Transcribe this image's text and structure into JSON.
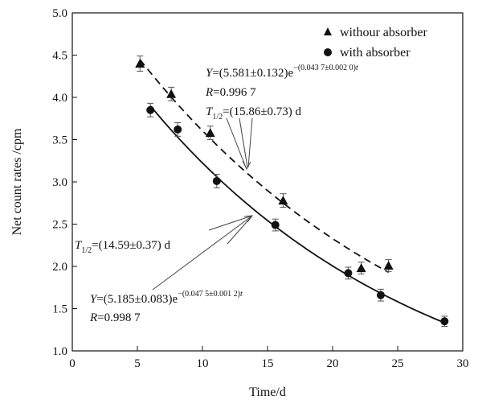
{
  "chart_data": {
    "type": "scatter",
    "xlabel": "Time/d",
    "ylabel": "Net count rates /cpm",
    "xlim": [
      0,
      30
    ],
    "ylim": [
      1.0,
      5.0
    ],
    "xticks": [
      "0",
      "5",
      "10",
      "15",
      "20",
      "25",
      "30"
    ],
    "yticks": [
      "1.0",
      "1.5",
      "2.0",
      "2.5",
      "3.0",
      "3.5",
      "4.0",
      "4.5",
      "5.0"
    ],
    "grid": false,
    "legend_position": "top-right",
    "series": [
      {
        "name": "withour absorber",
        "marker": "triangle",
        "line": "dashed",
        "x": [
          5.2,
          7.6,
          10.6,
          16.2,
          22.2,
          24.3
        ],
        "y": [
          4.4,
          4.04,
          3.58,
          2.78,
          1.98,
          2.01
        ],
        "err": [
          0.09,
          0.08,
          0.08,
          0.08,
          0.07,
          0.07
        ],
        "fit": {
          "A": 5.581,
          "lambda": 0.0437,
          "x_range": [
            5.2,
            24.3
          ]
        }
      },
      {
        "name": "with absorber",
        "marker": "circle",
        "line": "solid",
        "x": [
          6.0,
          8.1,
          11.1,
          15.6,
          21.2,
          23.7,
          28.6
        ],
        "y": [
          3.85,
          3.62,
          3.01,
          2.49,
          1.92,
          1.66,
          1.35
        ],
        "err": [
          0.08,
          0.08,
          0.08,
          0.07,
          0.07,
          0.07,
          0.06
        ],
        "fit": {
          "A": 5.185,
          "lambda": 0.0475,
          "x_range": [
            6.0,
            28.6
          ]
        }
      }
    ],
    "annotations": {
      "eq1": {
        "y_part": "Y",
        "pre": "=(5.581±0.132)e",
        "exp": "−(0.043 7±0.002 0)",
        "exp_t": "t",
        "r_part": "R",
        "r_val": "=0.996 7",
        "t_part": "T",
        "t_sub": "1/2",
        "t_val": "=(15.86±0.73) d"
      },
      "eq2": {
        "t_part": "T",
        "t_sub": "1/2",
        "t_val": "=(14.59±0.37) d",
        "y_part": "Y",
        "pre": "=(5.185±0.083)e",
        "exp": "−(0.047 5±0.001 2)",
        "exp_t": "t",
        "r_part": "R",
        "r_val": "=0.998 7"
      }
    }
  }
}
